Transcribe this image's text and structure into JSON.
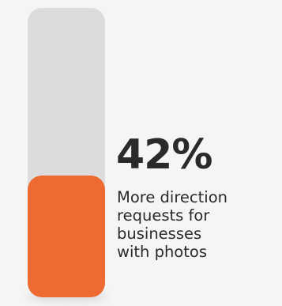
{
  "chart_data": {
    "type": "bar",
    "categories": [
      ""
    ],
    "values": [
      42
    ],
    "ylim": [
      0,
      100
    ],
    "grid": false,
    "annotation": {
      "value_label": "42%",
      "caption_lines": [
        "More direction",
        "requests for",
        "businesses",
        "with photos"
      ]
    }
  },
  "colors": {
    "track": "#dcdcdc",
    "fill": "#ee6a32",
    "text": "#2a2a2a",
    "background": "#f5f5f5"
  }
}
